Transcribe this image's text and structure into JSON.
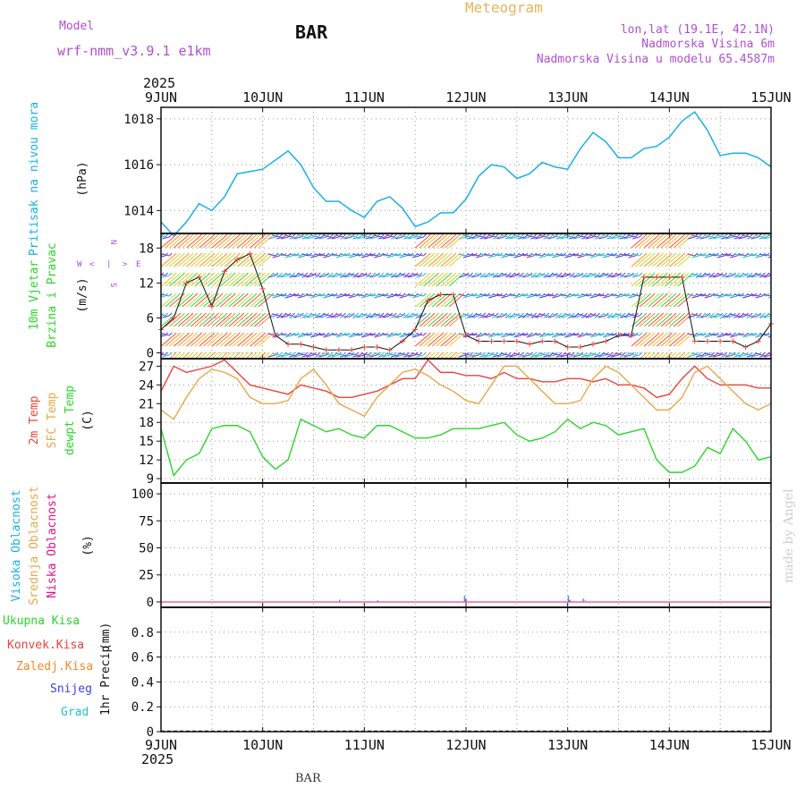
{
  "header": {
    "model_label": "Model",
    "model_name": "wrf-nmm_v3.9.1 e1km",
    "station": "BAR",
    "title": "Meteogram",
    "coords": "lon,lat (19.1E, 42.1N)",
    "elev": "Nadmorska Visina 6m",
    "elev_model": "Nadmorska Visina u modelu 65.4587m",
    "footer_station": "BAR",
    "watermark": "made by Angel"
  },
  "colors": {
    "pressure": "#1ab0e8",
    "temp2m": "#e8453c",
    "sfc": "#e8a84a",
    "dewpt": "#2bd62b",
    "high_cloud": "#1ab0e8",
    "mid_cloud": "#e8a84a",
    "low_cloud": "#e0138a",
    "total_precip": "#2bd62b",
    "conv_precip": "#e8453c",
    "frozen_precip": "#f08a2a",
    "snow": "#4040e0",
    "graupel": "#20c8c0",
    "wind_labels": "#2bd62b",
    "dir_labels": "#b050d0"
  },
  "time_axis": {
    "top_year": "2025",
    "bottom_year": "2025",
    "ticks": [
      "9JUN",
      "10JUN",
      "11JUN",
      "12JUN",
      "13JUN",
      "14JUN",
      "15JUN"
    ]
  },
  "chart_data": [
    {
      "type": "line",
      "panel": "pressure",
      "ylabel": "Pritisak na nivou mora",
      "unit": "(hPa)",
      "ylim": [
        1013,
        1018.5
      ],
      "yticks": [
        1014,
        1016,
        1018
      ],
      "x_hours": [
        0,
        3,
        6,
        9,
        12,
        15,
        18,
        21,
        24,
        27,
        30,
        33,
        36,
        39,
        42,
        45,
        48,
        51,
        54,
        57,
        60,
        63,
        66,
        69,
        72,
        75,
        78,
        81,
        84,
        87,
        90,
        93,
        96,
        99,
        102,
        105,
        108,
        111,
        114,
        117,
        120,
        123,
        126,
        129,
        132,
        135,
        138,
        141,
        144
      ],
      "series": [
        {
          "values": [
            1013.5,
            1012.9,
            1013.5,
            1014.3,
            1014.0,
            1014.6,
            1015.6,
            1015.7,
            1015.8,
            1016.2,
            1016.6,
            1016.0,
            1015.0,
            1014.4,
            1014.4,
            1014.0,
            1013.7,
            1014.4,
            1014.6,
            1014.1,
            1013.3,
            1013.5,
            1013.9,
            1013.9,
            1014.5,
            1015.5,
            1016.0,
            1015.9,
            1015.4,
            1015.6,
            1016.1,
            1015.9,
            1015.8,
            1016.7,
            1017.4,
            1017.0,
            1016.3,
            1016.3,
            1016.7,
            1016.8,
            1017.2,
            1017.9,
            1018.3,
            1017.5,
            1016.4,
            1016.5,
            1016.5,
            1016.3,
            1015.9
          ]
        }
      ]
    },
    {
      "type": "line",
      "panel": "wind",
      "ylabel": "10m Vjetar",
      "ylabel2": "Brzina i Pravac",
      "unit": "(m/s)",
      "dir_legend": [
        "N",
        "W",
        "E",
        "S",
        "<",
        ">",
        "|"
      ],
      "ylim": [
        -1,
        20.5
      ],
      "yticks": [
        0,
        6,
        12,
        18
      ],
      "x_hours": [
        0,
        3,
        6,
        9,
        12,
        15,
        18,
        21,
        24,
        27,
        30,
        33,
        36,
        39,
        42,
        45,
        48,
        51,
        54,
        57,
        60,
        63,
        66,
        69,
        72,
        75,
        78,
        81,
        84,
        87,
        90,
        93,
        96,
        99,
        102,
        105,
        108,
        111,
        114,
        117,
        120,
        123,
        126,
        129,
        132,
        135,
        138,
        141,
        144
      ],
      "series": [
        {
          "name": "speed",
          "values": [
            4,
            6,
            12,
            13,
            8,
            14,
            16,
            17,
            11,
            3,
            1.5,
            1.5,
            1,
            0.5,
            0.5,
            0.5,
            1,
            1,
            0.5,
            2,
            4,
            9,
            10,
            10,
            3,
            2,
            2,
            2,
            2,
            1.5,
            2,
            2,
            1,
            1,
            1.5,
            2,
            3,
            3,
            13,
            13,
            13,
            13,
            2,
            2,
            2,
            2,
            1,
            2,
            5
          ]
        },
        {
          "name": "direction",
          "values": [
            0,
            0,
            0,
            0,
            0,
            0,
            0,
            0,
            0,
            0,
            0,
            0,
            0,
            0,
            0,
            0,
            0,
            0,
            0,
            0,
            0,
            0,
            0,
            0,
            0,
            0,
            0,
            0,
            0,
            0,
            0,
            0,
            0,
            0,
            0,
            0,
            0,
            0,
            0,
            0,
            0,
            0,
            0,
            0,
            0,
            0,
            0,
            0,
            0
          ]
        }
      ]
    },
    {
      "type": "line",
      "panel": "temperature",
      "ylabel_2m": "2m Temp",
      "ylabel_sfc": "SFC Temp",
      "ylabel_dew": "dewpt Temp",
      "unit": "(C)",
      "ylim": [
        8.3,
        28.2
      ],
      "yticks": [
        9,
        12,
        15,
        18,
        21,
        24,
        27
      ],
      "x_hours": [
        0,
        3,
        6,
        9,
        12,
        15,
        18,
        21,
        24,
        27,
        30,
        33,
        36,
        39,
        42,
        45,
        48,
        51,
        54,
        57,
        60,
        63,
        66,
        69,
        72,
        75,
        78,
        81,
        84,
        87,
        90,
        93,
        96,
        99,
        102,
        105,
        108,
        111,
        114,
        117,
        120,
        123,
        126,
        129,
        132,
        135,
        138,
        141,
        144
      ],
      "series": [
        {
          "name": "2m Temp",
          "values": [
            23,
            27,
            26,
            26.5,
            27,
            28,
            26,
            24,
            23.5,
            23,
            22.5,
            24,
            23.5,
            23,
            22,
            22,
            22.5,
            23,
            24,
            25,
            25,
            28,
            26,
            26,
            25.5,
            25.5,
            25,
            26,
            25,
            25,
            24.5,
            24.5,
            25,
            25,
            24.5,
            25,
            24,
            24,
            23.5,
            22,
            22.5,
            25,
            27,
            25,
            24,
            24,
            24,
            23.5,
            23.5
          ]
        },
        {
          "name": "SFC Temp",
          "values": [
            20,
            18.5,
            22,
            25,
            26.5,
            26,
            25,
            22,
            21,
            21,
            21.5,
            25,
            26.5,
            24,
            21,
            20,
            19,
            22,
            24,
            26,
            26.5,
            25.5,
            24,
            23,
            21.5,
            21,
            24,
            27,
            27,
            25,
            23,
            21,
            21,
            21.5,
            25,
            27,
            26,
            24,
            22,
            20,
            20,
            22,
            26,
            27,
            25,
            23,
            21,
            20,
            21
          ]
        },
        {
          "name": "dewpt Temp",
          "values": [
            17,
            9.5,
            12,
            13,
            17,
            17.5,
            17.5,
            16.5,
            12.5,
            10.5,
            12,
            18.5,
            17.5,
            16.5,
            17,
            16,
            15.5,
            17.5,
            17.5,
            16.5,
            15.5,
            15.5,
            16,
            17,
            17,
            17,
            17.5,
            18,
            16,
            15,
            15.5,
            16.5,
            18.5,
            17,
            18,
            17.5,
            16,
            16.5,
            17,
            12,
            10,
            10,
            11,
            14,
            13,
            17,
            15,
            12,
            12.5
          ]
        }
      ]
    },
    {
      "type": "bar",
      "panel": "clouds",
      "ylabel_high": "Visoka Oblacnost",
      "ylabel_mid": "Srednja Oblacnost",
      "ylabel_low": "Niska Oblacnost",
      "unit": "(%)",
      "ylim": [
        -5,
        110
      ],
      "yticks": [
        0,
        25,
        50,
        75,
        100
      ],
      "bars": [
        {
          "x_hour": 42,
          "series": "high",
          "value": 2
        },
        {
          "x_hour": 51,
          "series": "high",
          "value": 1.5
        },
        {
          "x_hour": 71.5,
          "series": "high",
          "value": 6
        },
        {
          "x_hour": 71.8,
          "series": "low",
          "value": 3
        },
        {
          "x_hour": 96,
          "series": "high",
          "value": 6
        },
        {
          "x_hour": 96.3,
          "series": "low",
          "value": 2
        },
        {
          "x_hour": 99.5,
          "series": "high",
          "value": 3
        },
        {
          "x_hour": 100,
          "series": "mid",
          "value": 2
        }
      ]
    },
    {
      "type": "line",
      "panel": "precip",
      "legend": [
        "Ukupna Kisa",
        "Konvek.Kisa",
        "Zaledj.Kisa",
        "Snijeg",
        "Grad"
      ],
      "ylabel": "1hr Precip",
      "unit": "(mm)",
      "ylim": [
        0,
        1.0
      ],
      "yticks": [
        0,
        0.2,
        0.4,
        0.6,
        0.8
      ],
      "x_hours": [
        0,
        144
      ],
      "series": [
        {
          "name": "Ukupna Kisa",
          "values": [
            0,
            0
          ]
        }
      ]
    }
  ]
}
